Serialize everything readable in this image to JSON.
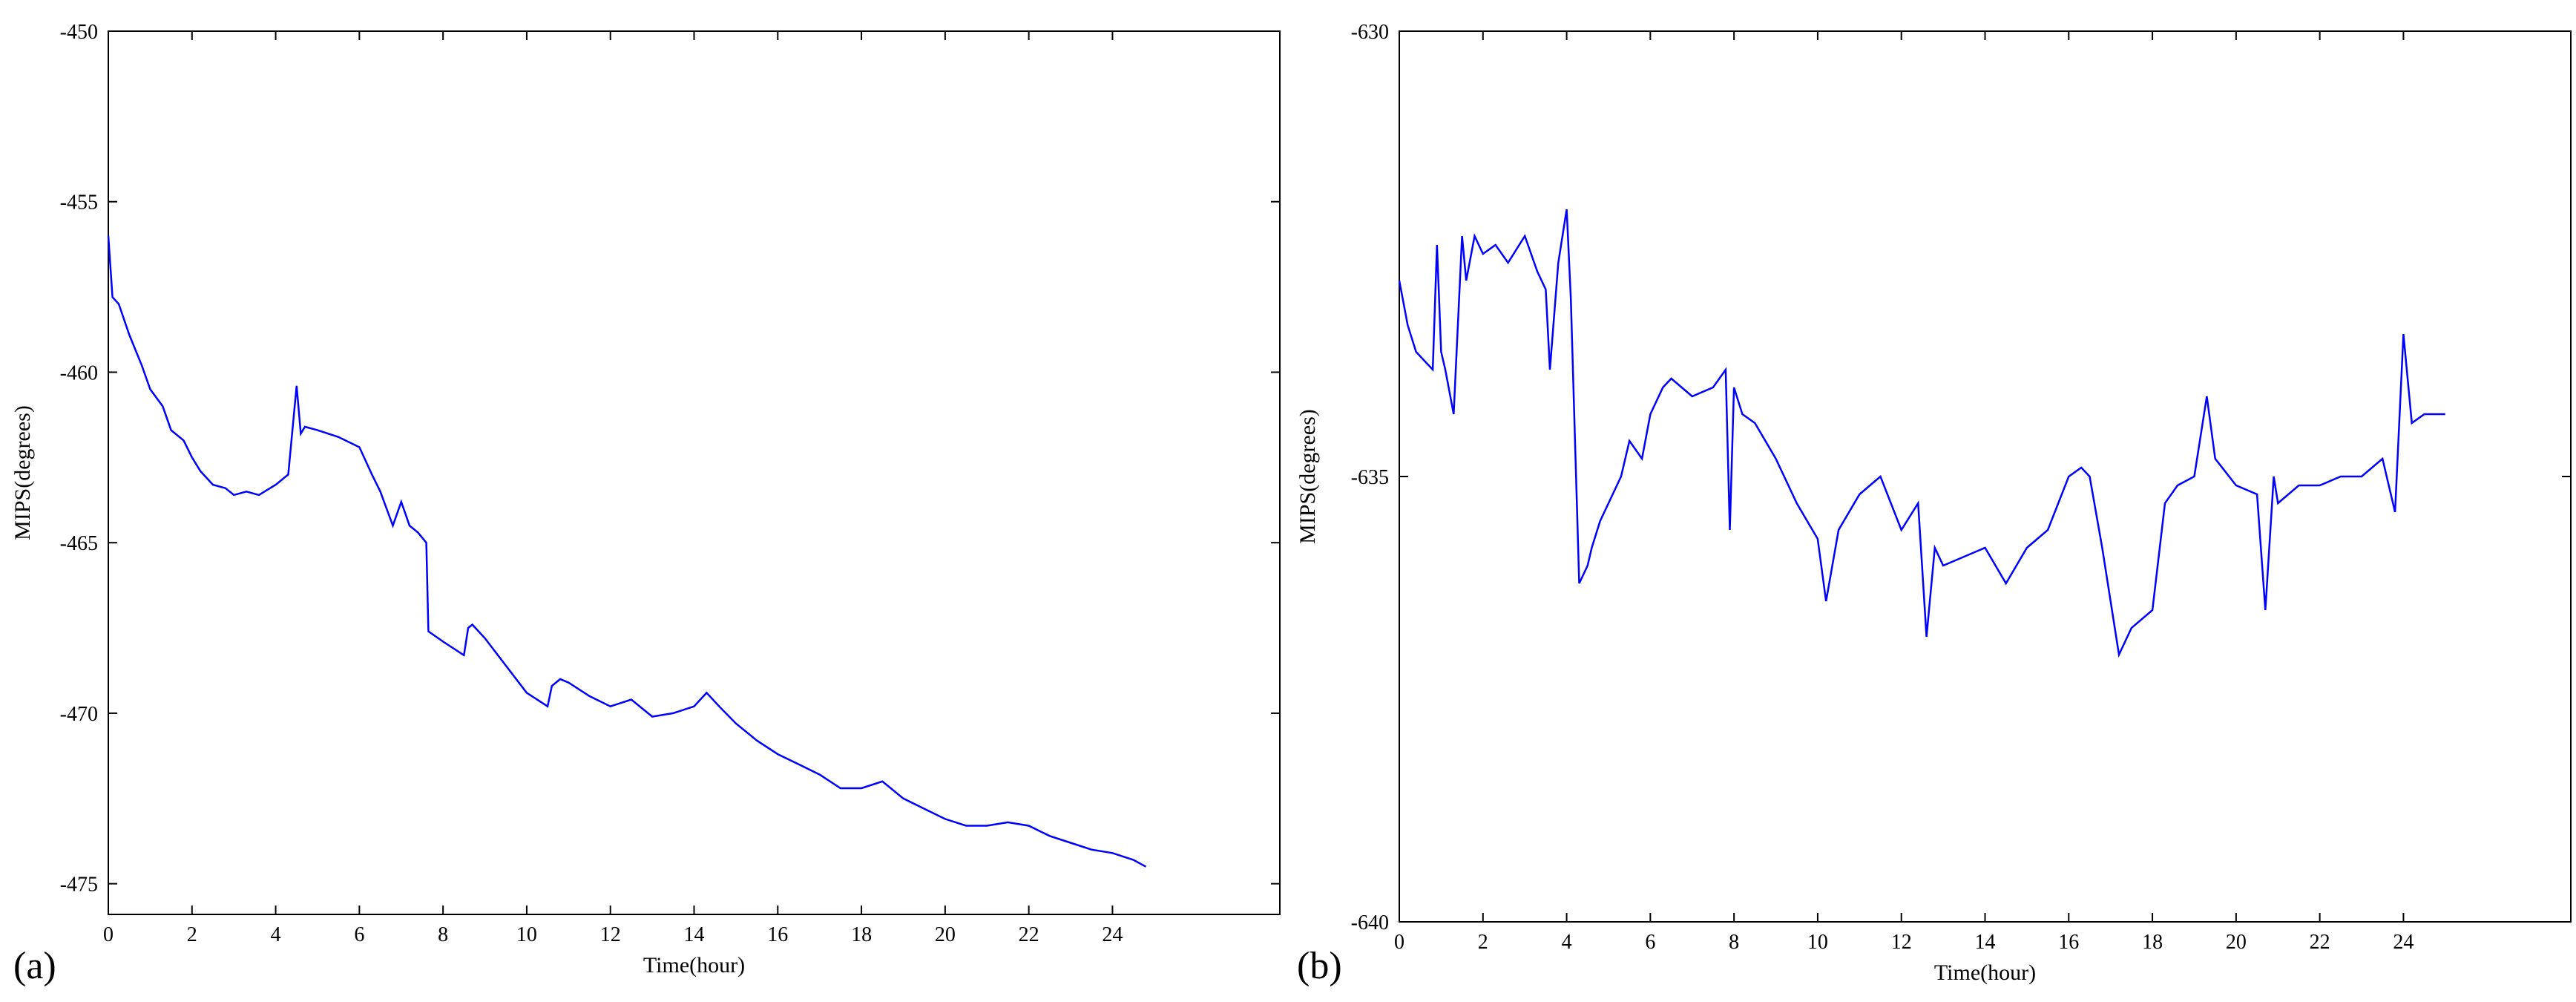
{
  "panels": [
    {
      "label": "(a)"
    },
    {
      "label": "(b)"
    }
  ],
  "chart_data": [
    {
      "type": "line",
      "title": "",
      "xlabel": "Time(hour)",
      "ylabel": "MIPS(degrees)",
      "xlim": [
        0,
        28
      ],
      "ylim": [
        -475.9,
        -450
      ],
      "x_ticks": [
        0,
        2,
        4,
        6,
        8,
        10,
        12,
        14,
        16,
        18,
        20,
        22,
        24
      ],
      "x_tick_labels": [
        "0",
        "2",
        "4",
        "6",
        "8",
        "10",
        "12",
        "14",
        "16",
        "18",
        "20",
        "22",
        "24"
      ],
      "y_ticks": [
        -450,
        -455,
        -460,
        -465,
        -470,
        -475
      ],
      "y_tick_labels": [
        "-450",
        "-455",
        "-460",
        "-465",
        "-470",
        "-475"
      ],
      "grid": false,
      "color": "#0000ff",
      "series": [
        {
          "x": [
            0,
            0.1,
            0.25,
            0.5,
            0.8,
            1.0,
            1.3,
            1.5,
            1.8,
            2.0,
            2.2,
            2.5,
            2.8,
            3.0,
            3.3,
            3.6,
            4.0,
            4.3,
            4.5,
            4.6,
            4.7,
            5.0,
            5.5,
            6.0,
            6.3,
            6.5,
            6.8,
            7.0,
            7.2,
            7.4,
            7.6,
            7.65,
            8.0,
            8.5,
            8.6,
            8.7,
            9.0,
            9.5,
            10.0,
            10.5,
            10.6,
            10.8,
            11.0,
            11.5,
            12.0,
            12.5,
            13.0,
            13.5,
            14.0,
            14.3,
            14.6,
            15.0,
            15.5,
            16.0,
            16.5,
            17.0,
            17.5,
            18.0,
            18.5,
            19.0,
            19.5,
            20.0,
            20.5,
            21.0,
            21.5,
            22.0,
            22.5,
            23.0,
            23.5,
            24.0,
            24.5,
            24.8
          ],
          "y": [
            -456.0,
            -457.8,
            -458.0,
            -458.9,
            -459.8,
            -460.5,
            -461.0,
            -461.7,
            -462.0,
            -462.5,
            -462.9,
            -463.3,
            -463.4,
            -463.6,
            -463.5,
            -463.6,
            -463.3,
            -463.0,
            -460.4,
            -461.8,
            -461.6,
            -461.7,
            -461.9,
            -462.2,
            -463.0,
            -463.5,
            -464.5,
            -463.8,
            -464.5,
            -464.7,
            -465.0,
            -467.6,
            -467.9,
            -468.3,
            -467.5,
            -467.4,
            -467.8,
            -468.6,
            -469.4,
            -469.8,
            -469.2,
            -469.0,
            -469.1,
            -469.5,
            -469.8,
            -469.6,
            -470.1,
            -470.0,
            -469.8,
            -469.4,
            -469.8,
            -470.3,
            -470.8,
            -471.2,
            -471.5,
            -471.8,
            -472.2,
            -472.2,
            -472.0,
            -472.5,
            -472.8,
            -473.1,
            -473.3,
            -473.3,
            -473.2,
            -473.3,
            -473.6,
            -473.8,
            -474.0,
            -474.1,
            -474.3,
            -474.5
          ]
        }
      ]
    },
    {
      "type": "line",
      "title": "",
      "xlabel": "Time(hour)",
      "ylabel": "MIPS(degrees)",
      "xlim": [
        0,
        28
      ],
      "ylim": [
        -640,
        -630
      ],
      "x_ticks": [
        0,
        2,
        4,
        6,
        8,
        10,
        12,
        14,
        16,
        18,
        20,
        22,
        24
      ],
      "x_tick_labels": [
        "0",
        "2",
        "4",
        "6",
        "8",
        "10",
        "12",
        "14",
        "16",
        "18",
        "20",
        "22",
        "24"
      ],
      "y_ticks": [
        -630,
        -635,
        -640
      ],
      "y_tick_labels": [
        "-630",
        "-635",
        "-640"
      ],
      "grid": false,
      "color": "#0000ff",
      "series": [
        {
          "x": [
            0,
            0.2,
            0.4,
            0.6,
            0.8,
            0.9,
            1.0,
            1.1,
            1.3,
            1.5,
            1.6,
            1.8,
            2.0,
            2.3,
            2.6,
            3.0,
            3.3,
            3.5,
            3.6,
            3.8,
            4.0,
            4.1,
            4.3,
            4.5,
            4.6,
            4.8,
            5.0,
            5.3,
            5.5,
            5.8,
            6.0,
            6.3,
            6.5,
            7.0,
            7.5,
            7.8,
            7.9,
            8.0,
            8.2,
            8.5,
            9.0,
            9.5,
            10.0,
            10.2,
            10.5,
            11.0,
            11.5,
            12.0,
            12.4,
            12.6,
            12.8,
            13.0,
            13.5,
            14.0,
            14.5,
            15.0,
            15.5,
            16.0,
            16.3,
            16.5,
            16.8,
            17.0,
            17.2,
            17.5,
            18.0,
            18.3,
            18.6,
            19.0,
            19.3,
            19.5,
            20.0,
            20.5,
            20.7,
            20.9,
            21.0,
            21.5,
            22.0,
            22.5,
            23.0,
            23.5,
            23.8,
            24.0,
            24.2,
            24.5,
            25.0
          ],
          "y": [
            -632.8,
            -633.3,
            -633.6,
            -633.7,
            -633.8,
            -632.4,
            -633.6,
            -633.8,
            -634.3,
            -632.3,
            -632.8,
            -632.3,
            -632.5,
            -632.4,
            -632.6,
            -632.3,
            -632.7,
            -632.9,
            -633.8,
            -632.6,
            -632.0,
            -633.0,
            -636.2,
            -636.0,
            -635.8,
            -635.5,
            -635.3,
            -635.0,
            -634.6,
            -634.8,
            -634.3,
            -634.0,
            -633.9,
            -634.1,
            -634.0,
            -633.8,
            -635.6,
            -634.0,
            -634.3,
            -634.4,
            -634.8,
            -635.3,
            -635.7,
            -636.4,
            -635.6,
            -635.2,
            -635.0,
            -635.6,
            -635.3,
            -636.8,
            -635.8,
            -636.0,
            -635.9,
            -635.8,
            -636.2,
            -635.8,
            -635.6,
            -635.0,
            -634.9,
            -635.0,
            -635.8,
            -636.4,
            -637.0,
            -636.7,
            -636.5,
            -635.3,
            -635.1,
            -635.0,
            -634.1,
            -634.8,
            -635.1,
            -635.2,
            -636.5,
            -635.0,
            -635.3,
            -635.1,
            -635.1,
            -635.0,
            -635.0,
            -634.8,
            -635.4,
            -633.4,
            -634.4,
            -634.3,
            -634.3
          ]
        }
      ]
    }
  ]
}
